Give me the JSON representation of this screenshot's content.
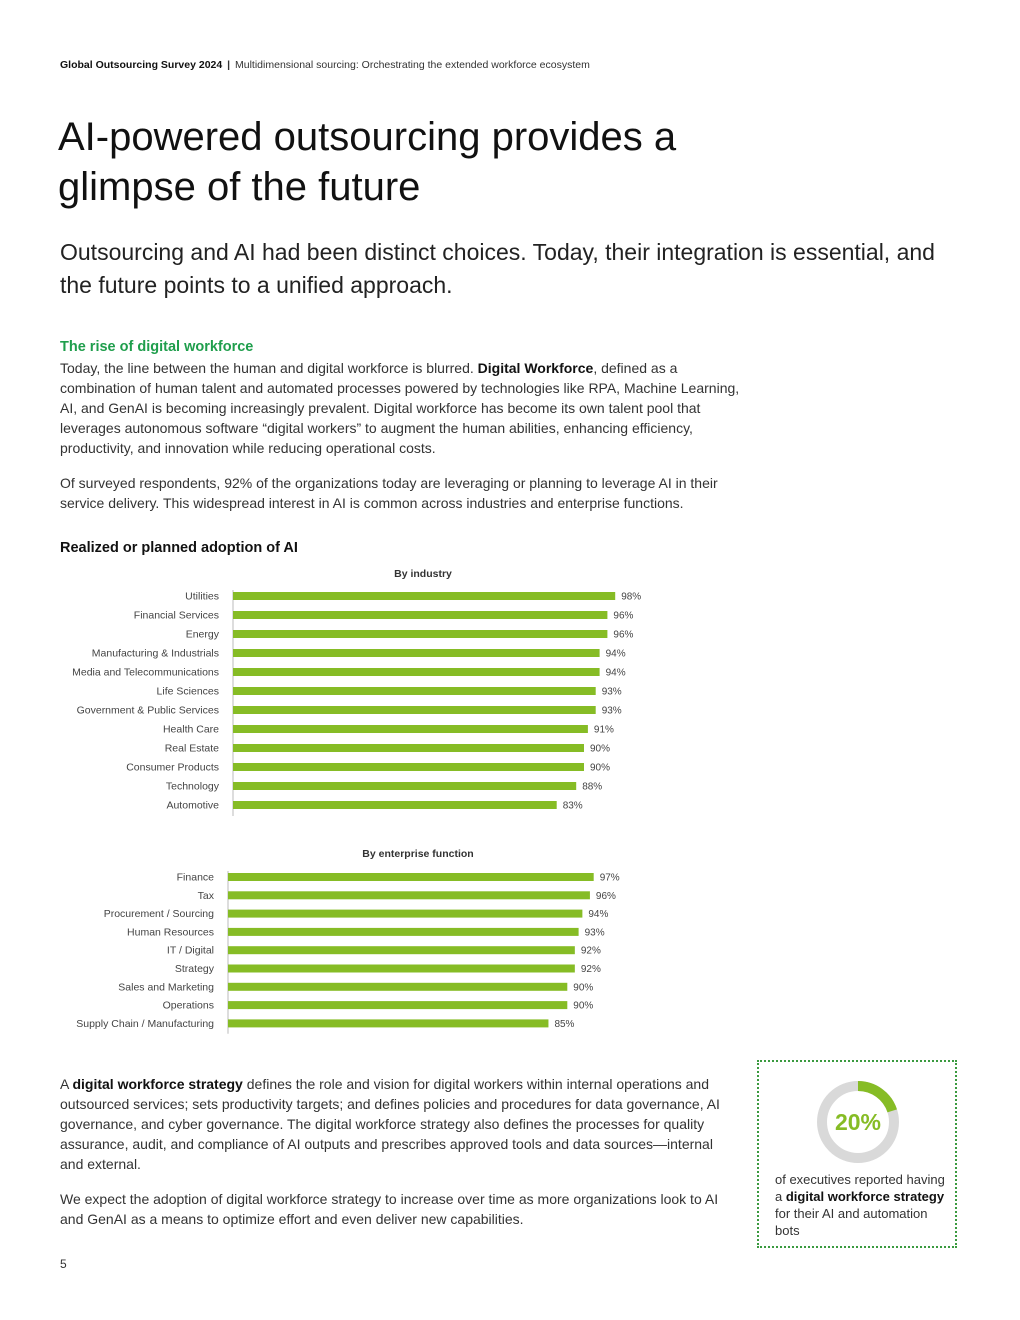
{
  "header": {
    "report": "Global Outsourcing Survey 2024",
    "separator": "|",
    "section": "Multidimensional sourcing: Orchestrating the extended workforce ecosystem"
  },
  "title": "AI-powered outsourcing provides a glimpse of the future",
  "subtitle": "Outsourcing and AI had been distinct choices. Today, their integration is essential, and the future points to a unified approach.",
  "section1": {
    "heading": "The rise of digital workforce",
    "p1_before": "Today, the line between the human and digital workforce is blurred. ",
    "p1_bold": "Digital Workforce",
    "p1_after": ", defined as a combination of human talent and automated processes powered by technologies like RPA, Machine Learning, AI, and GenAI is becoming increasingly prevalent. Digital workforce has become its own talent pool that leverages autonomous software “digital workers” to augment the human abilities, enhancing efficiency, productivity, and innovation while reducing operational costs.",
    "p2": "Of surveyed respondents, 92% of the organizations today are leveraging or planning to leverage AI in their service delivery. This widespread interest in AI is common across industries and enterprise functions."
  },
  "chart_heading": "Realized or planned adoption of AI",
  "chart_data": [
    {
      "type": "bar",
      "orientation": "horizontal",
      "title": "By industry",
      "categories": [
        "Utilities",
        "Financial Services",
        "Energy",
        "Manufacturing & Industrials",
        "Media and Telecommunications",
        "Life Sciences",
        "Government & Public Services",
        "Health Care",
        "Real Estate",
        "Consumer Products",
        "Technology",
        "Automotive"
      ],
      "values": [
        98,
        96,
        96,
        94,
        94,
        93,
        93,
        91,
        90,
        90,
        88,
        83
      ],
      "value_labels": [
        "98%",
        "96%",
        "96%",
        "94%",
        "94%",
        "93%",
        "93%",
        "91%",
        "90%",
        "90%",
        "88%",
        "83%"
      ],
      "bar_color": "#86bc25"
    },
    {
      "type": "bar",
      "orientation": "horizontal",
      "title": "By enterprise function",
      "categories": [
        "Finance",
        "Tax",
        "Procurement / Sourcing",
        "Human Resources",
        "IT / Digital",
        "Strategy",
        "Sales and Marketing",
        "Operations",
        "Supply Chain / Manufacturing"
      ],
      "values": [
        97,
        96,
        94,
        93,
        92,
        92,
        90,
        90,
        85
      ],
      "value_labels": [
        "97%",
        "96%",
        "94%",
        "93%",
        "92%",
        "92%",
        "90%",
        "90%",
        "85%"
      ],
      "bar_color": "#86bc25"
    }
  ],
  "section2": {
    "p1_before": "A ",
    "p1_bold": "digital workforce strategy",
    "p1_after": " defines the role and vision for digital workers within internal operations and outsourced services; sets productivity targets; and defines policies and procedures for data governance, AI governance, and cyber governance. The digital workforce strategy also defines the processes for quality assurance, audit, and compliance of AI outputs and prescribes approved tools and data sources—internal and external.",
    "p2": "We expect the adoption of digital workforce strategy to increase over time as more organizations look to AI and GenAI as a means to optimize effort and even deliver new capabilities."
  },
  "callout": {
    "value": "20%",
    "fraction": 0.2,
    "text_before": "of executives reported having a ",
    "text_bold": "digital workforce strategy",
    "text_after": " for their AI and automation bots",
    "ring_color": "#86bc25",
    "track_color": "#d9d9d9"
  },
  "page_number": "5"
}
